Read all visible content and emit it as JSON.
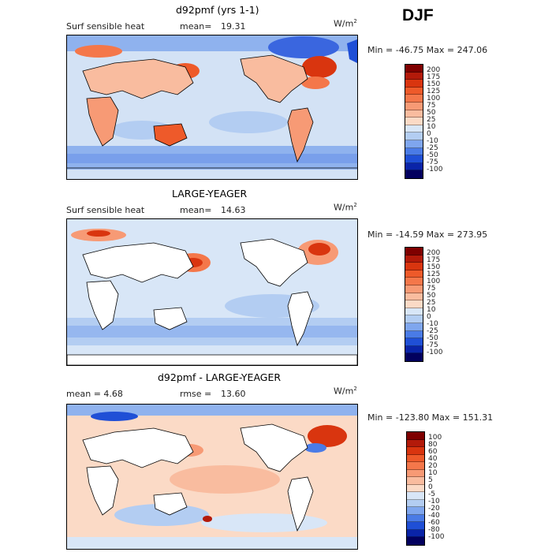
{
  "season": "DJF",
  "panels": [
    {
      "title": "d92pmf (yrs 1-1)",
      "left_label": "Surf sensible heat",
      "stat_label": "mean=",
      "stat_value": "19.31",
      "units": "W/m",
      "units_exp": "2",
      "minmax": "Min = -46.75 Max = 247.06",
      "colorbar_levels": [
        "200",
        "175",
        "150",
        "125",
        "100",
        "75",
        "50",
        "25",
        "10",
        "0",
        "-10",
        "-25",
        "-50",
        "-75",
        "-100"
      ]
    },
    {
      "title": "LARGE-YEAGER",
      "left_label": "Surf sensible heat",
      "stat_label": "mean=",
      "stat_value": "14.63",
      "units": "W/m",
      "units_exp": "2",
      "minmax": "Min = -14.59 Max = 273.95",
      "colorbar_levels": [
        "200",
        "175",
        "150",
        "125",
        "100",
        "75",
        "50",
        "25",
        "10",
        "0",
        "-10",
        "-25",
        "-50",
        "-75",
        "-100"
      ]
    },
    {
      "title": "d92pmf - LARGE-YEAGER",
      "left_label": "mean =    4.68",
      "stat_label": "rmse =",
      "stat_value": "13.60",
      "units": "W/m",
      "units_exp": "2",
      "minmax": "Min = -123.80 Max = 151.31",
      "colorbar_levels": [
        "100",
        "80",
        "60",
        "40",
        "20",
        "10",
        "5",
        "0",
        "-5",
        "-10",
        "-20",
        "-40",
        "-60",
        "-80",
        "-100"
      ]
    }
  ],
  "colors": {
    "ramp": [
      "#7f0000",
      "#b31a0a",
      "#d9350f",
      "#ee5a2a",
      "#f4774a",
      "#f79a75",
      "#f9bc9f",
      "#fbdac6",
      "#ffffff",
      "#d8e6f7",
      "#b3cdf2",
      "#7fa6ee",
      "#4a7be6",
      "#1f4fd6",
      "#0a24a8",
      "#02005e"
    ],
    "land": "#ffffff",
    "ocean_base": "#d3e2f5"
  }
}
